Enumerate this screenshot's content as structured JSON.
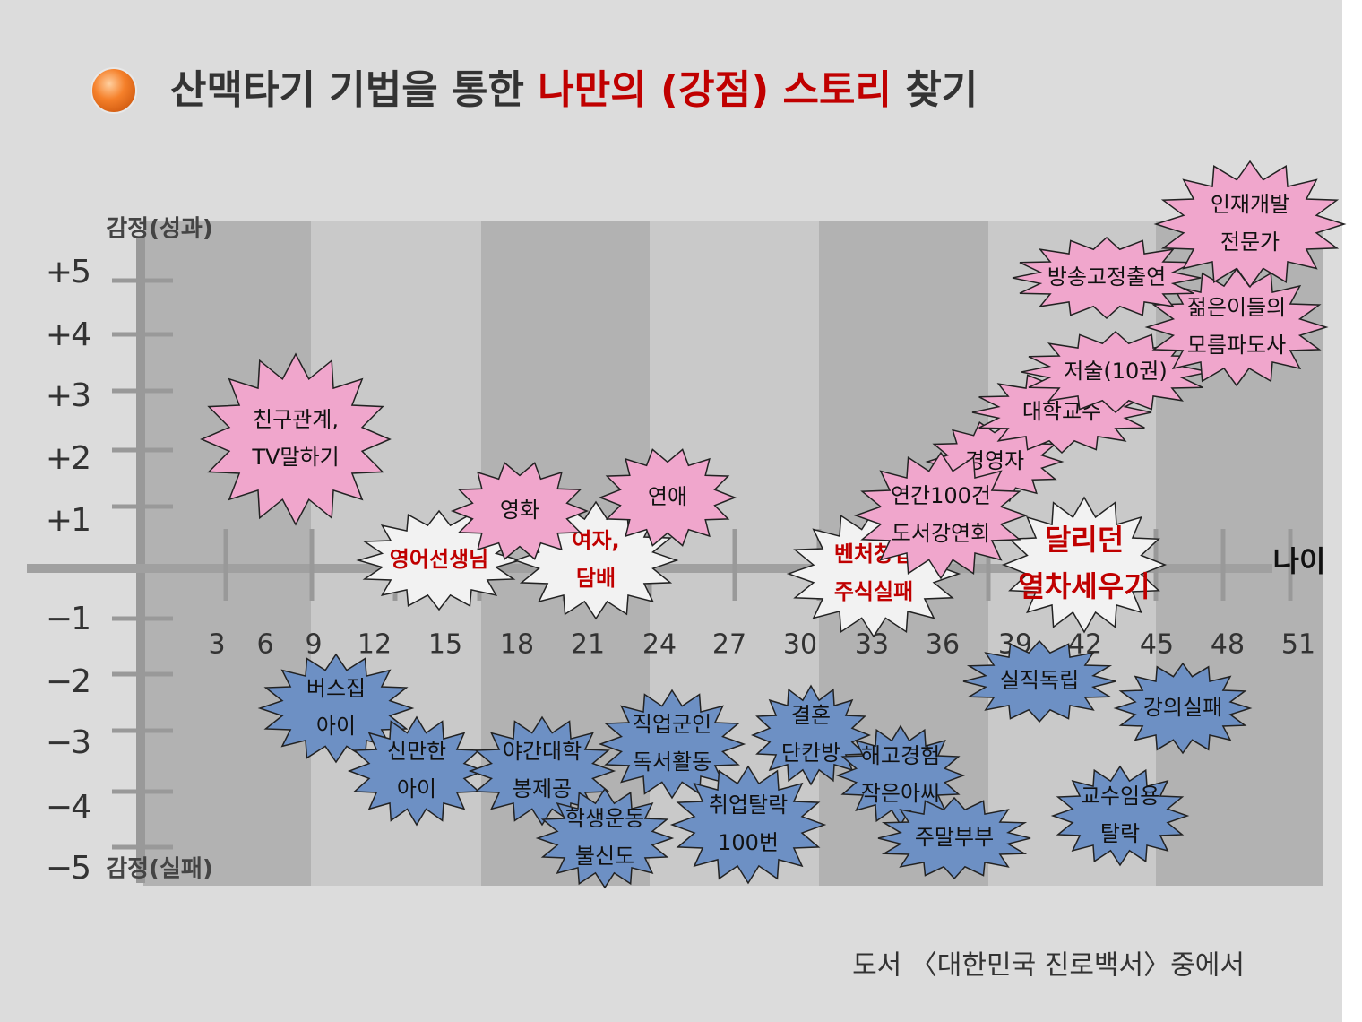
{
  "header": {
    "title_plain": "산맥타기 기법을 통한",
    "title_highlight": "나만의 (강점) 스토리",
    "title_end": "찾기"
  },
  "axes": {
    "y_top_label": "감정(성과)",
    "y_bottom_label": "감정(실패)",
    "x_label": "나이",
    "y_ticks": [
      "+5",
      "+4",
      "+3",
      "+2",
      "+1",
      "−1",
      "−2",
      "−3",
      "−4",
      "−5"
    ],
    "x_ticks": [
      "3",
      "6",
      "9",
      "12",
      "15",
      "18",
      "21",
      "24",
      "27",
      "30",
      "33",
      "36",
      "39",
      "42",
      "45",
      "48",
      "51"
    ]
  },
  "events": {
    "success": [
      [
        "친구관계,",
        "TV말하기"
      ],
      [
        "영화"
      ],
      [
        "연애"
      ],
      [
        "경영자"
      ],
      [
        "연간100건",
        "도서강연회"
      ],
      [
        "대학교수"
      ],
      [
        "저술(10권)"
      ],
      [
        "젊은이들의",
        "모름파도사"
      ],
      [
        "방송고정출연"
      ],
      [
        "인재개발",
        "전문가"
      ]
    ],
    "turning": [
      [
        "영어선생님"
      ],
      [
        "여자,",
        "담배"
      ],
      [
        "벤처창업",
        "주식실패"
      ],
      [
        "달리던",
        "열차세우기"
      ]
    ],
    "failure": [
      [
        "버스집",
        "아이"
      ],
      [
        "신만한",
        "아이"
      ],
      [
        "야간대학",
        "봉제공"
      ],
      [
        "학생운동",
        "불신도"
      ],
      [
        "직업군인",
        "독서활동"
      ],
      [
        "취업탈락",
        "100번"
      ],
      [
        "결혼",
        "단칸방"
      ],
      [
        "해고경험",
        "작은아씨"
      ],
      [
        "주말부부"
      ],
      [
        "실직독립"
      ],
      [
        "강의실패"
      ],
      [
        "교수임용",
        "탈락"
      ]
    ]
  },
  "footer": {
    "source": "도서 〈대한민국 진로백서〉중에서"
  }
}
